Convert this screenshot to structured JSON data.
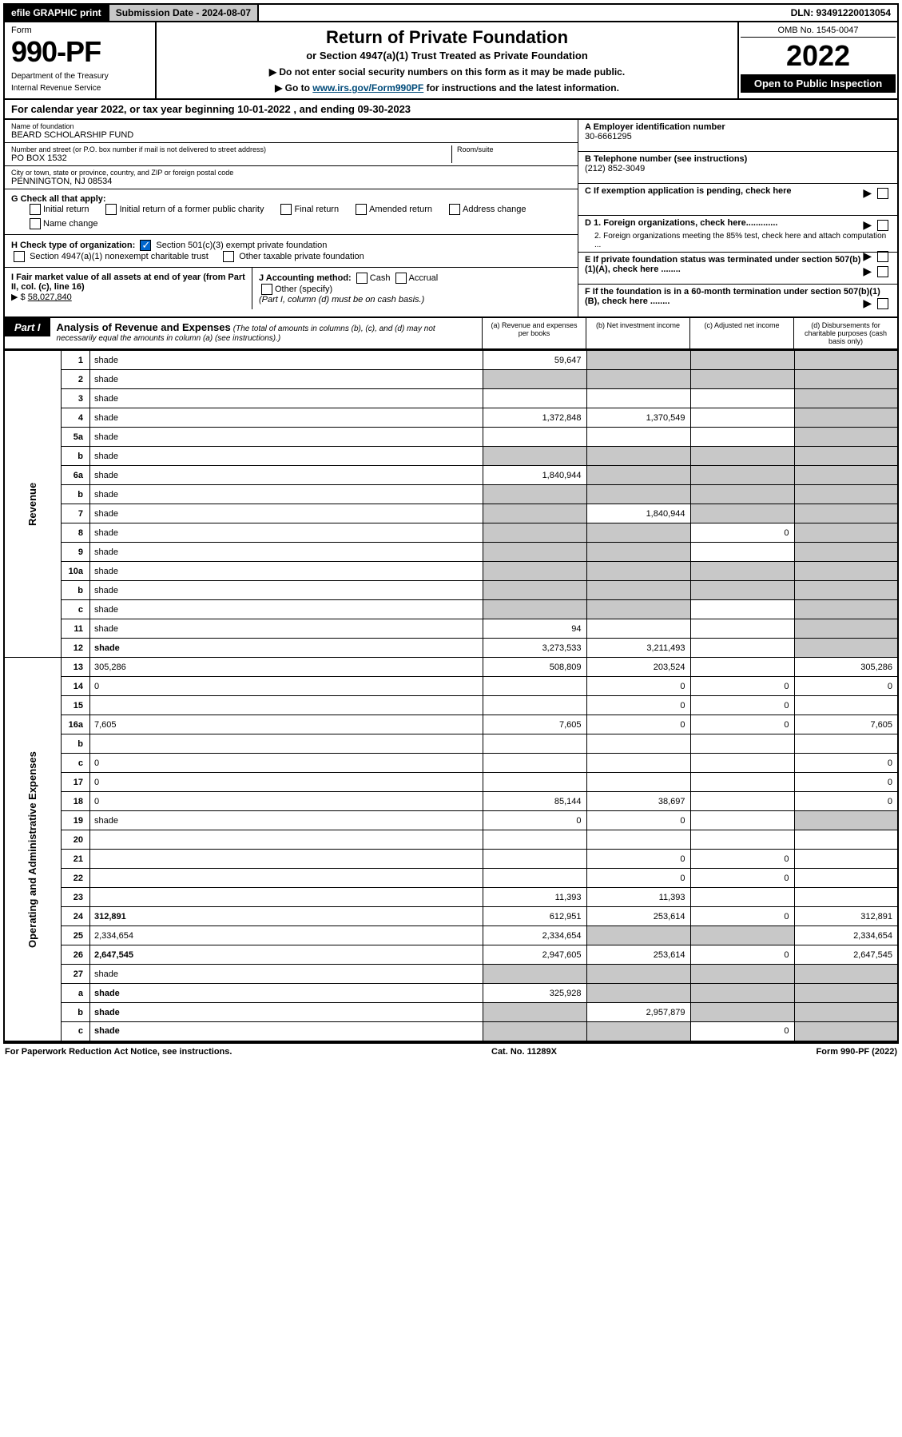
{
  "top_bar": {
    "efile": "efile GRAPHIC print",
    "submission_label": "Submission Date - 2024-08-07",
    "dln": "DLN: 93491220013054"
  },
  "header": {
    "form_word": "Form",
    "form_number": "990-PF",
    "dept": "Department of the Treasury",
    "irs": "Internal Revenue Service",
    "title": "Return of Private Foundation",
    "subtitle": "or Section 4947(a)(1) Trust Treated as Private Foundation",
    "instr1": "Do not enter social security numbers on this form as it may be made public.",
    "instr2_pre": "Go to ",
    "instr2_link": "www.irs.gov/Form990PF",
    "instr2_post": " for instructions and the latest information.",
    "omb": "OMB No. 1545-0047",
    "tax_year": "2022",
    "open_pub": "Open to Public Inspection"
  },
  "calendar": {
    "text_pre": "For calendar year 2022, or tax year beginning ",
    "begin": "10-01-2022",
    "mid": " , and ending ",
    "end": "09-30-2023"
  },
  "entity": {
    "name_label": "Name of foundation",
    "name": "BEARD SCHOLARSHIP FUND",
    "street_label": "Number and street (or P.O. box number if mail is not delivered to street address)",
    "street": "PO BOX 1532",
    "room_label": "Room/suite",
    "city_label": "City or town, state or province, country, and ZIP or foreign postal code",
    "city": "PENNINGTON, NJ  08534",
    "a_label": "A Employer identification number",
    "a_val": "30-6661295",
    "b_label": "B Telephone number (see instructions)",
    "b_val": "(212) 852-3049",
    "c_label": "C If exemption application is pending, check here",
    "d1": "D 1. Foreign organizations, check here.............",
    "d2": "2. Foreign organizations meeting the 85% test, check here and attach computation ...",
    "e_label": "E  If private foundation status was terminated under section 507(b)(1)(A), check here ........",
    "f_label": "F  If the foundation is in a 60-month termination under section 507(b)(1)(B), check here ........"
  },
  "g": {
    "label": "G Check all that apply:",
    "opts": [
      "Initial return",
      "Initial return of a former public charity",
      "Final return",
      "Amended return",
      "Address change",
      "Name change"
    ]
  },
  "h": {
    "label": "H Check type of organization:",
    "opt1": "Section 501(c)(3) exempt private foundation",
    "opt2": "Section 4947(a)(1) nonexempt charitable trust",
    "opt3": "Other taxable private foundation"
  },
  "i": {
    "label": "I Fair market value of all assets at end of year (from Part II, col. (c), line 16)",
    "arrow": "▶ $",
    "val": "58,027,840"
  },
  "j": {
    "label": "J Accounting method:",
    "cash": "Cash",
    "accrual": "Accrual",
    "other": "Other (specify)",
    "note": "(Part I, column (d) must be on cash basis.)"
  },
  "part1": {
    "badge": "Part I",
    "title": "Analysis of Revenue and Expenses",
    "note": "(The total of amounts in columns (b), (c), and (d) may not necessarily equal the amounts in column (a) (see instructions).)",
    "col_a": "(a)   Revenue and expenses per books",
    "col_b": "(b)   Net investment income",
    "col_c": "(c)   Adjusted net income",
    "col_d": "(d)  Disbursements for charitable purposes (cash basis only)"
  },
  "side_labels": {
    "revenue": "Revenue",
    "opex": "Operating and Administrative Expenses"
  },
  "rows": [
    {
      "n": "1",
      "d": "shade",
      "a": "59,647",
      "b": "shade",
      "c": "shade"
    },
    {
      "n": "2",
      "d": "shade",
      "a": "shade",
      "b": "shade",
      "c": "shade"
    },
    {
      "n": "3",
      "d": "shade",
      "a": "",
      "b": "",
      "c": ""
    },
    {
      "n": "4",
      "d": "shade",
      "a": "1,372,848",
      "b": "1,370,549",
      "c": ""
    },
    {
      "n": "5a",
      "d": "shade",
      "a": "",
      "b": "",
      "c": ""
    },
    {
      "n": "b",
      "d": "shade",
      "a": "shade",
      "b": "shade",
      "c": "shade"
    },
    {
      "n": "6a",
      "d": "shade",
      "a": "1,840,944",
      "b": "shade",
      "c": "shade"
    },
    {
      "n": "b",
      "d": "shade",
      "a": "shade",
      "b": "shade",
      "c": "shade"
    },
    {
      "n": "7",
      "d": "shade",
      "a": "shade",
      "b": "1,840,944",
      "c": "shade"
    },
    {
      "n": "8",
      "d": "shade",
      "a": "shade",
      "b": "shade",
      "c": "0"
    },
    {
      "n": "9",
      "d": "shade",
      "a": "shade",
      "b": "shade",
      "c": ""
    },
    {
      "n": "10a",
      "d": "shade",
      "a": "shade",
      "b": "shade",
      "c": "shade"
    },
    {
      "n": "b",
      "d": "shade",
      "a": "shade",
      "b": "shade",
      "c": "shade"
    },
    {
      "n": "c",
      "d": "shade",
      "a": "shade",
      "b": "shade",
      "c": ""
    },
    {
      "n": "11",
      "d": "shade",
      "a": "94",
      "b": "",
      "c": ""
    },
    {
      "n": "12",
      "d": "shade",
      "a": "3,273,533",
      "b": "3,211,493",
      "c": "",
      "bold": true
    },
    {
      "n": "13",
      "d": "305,286",
      "a": "508,809",
      "b": "203,524",
      "c": ""
    },
    {
      "n": "14",
      "d": "0",
      "a": "",
      "b": "0",
      "c": "0"
    },
    {
      "n": "15",
      "d": "",
      "a": "",
      "b": "0",
      "c": "0"
    },
    {
      "n": "16a",
      "d": "7,605",
      "a": "7,605",
      "b": "0",
      "c": "0"
    },
    {
      "n": "b",
      "d": "",
      "a": "",
      "b": "",
      "c": ""
    },
    {
      "n": "c",
      "d": "0",
      "a": "",
      "b": "",
      "c": ""
    },
    {
      "n": "17",
      "d": "0",
      "a": "",
      "b": "",
      "c": ""
    },
    {
      "n": "18",
      "d": "0",
      "a": "85,144",
      "b": "38,697",
      "c": ""
    },
    {
      "n": "19",
      "d": "shade",
      "a": "0",
      "b": "0",
      "c": ""
    },
    {
      "n": "20",
      "d": "",
      "a": "",
      "b": "",
      "c": ""
    },
    {
      "n": "21",
      "d": "",
      "a": "",
      "b": "0",
      "c": "0"
    },
    {
      "n": "22",
      "d": "",
      "a": "",
      "b": "0",
      "c": "0"
    },
    {
      "n": "23",
      "d": "",
      "a": "11,393",
      "b": "11,393",
      "c": ""
    },
    {
      "n": "24",
      "d": "312,891",
      "a": "612,951",
      "b": "253,614",
      "c": "0",
      "bold": true
    },
    {
      "n": "25",
      "d": "2,334,654",
      "a": "2,334,654",
      "b": "shade",
      "c": "shade"
    },
    {
      "n": "26",
      "d": "2,647,545",
      "a": "2,947,605",
      "b": "253,614",
      "c": "0",
      "bold": true
    },
    {
      "n": "27",
      "d": "shade",
      "a": "shade",
      "b": "shade",
      "c": "shade"
    },
    {
      "n": "a",
      "d": "shade",
      "a": "325,928",
      "b": "shade",
      "c": "shade",
      "bold": true
    },
    {
      "n": "b",
      "d": "shade",
      "a": "shade",
      "b": "2,957,879",
      "c": "shade",
      "bold": true
    },
    {
      "n": "c",
      "d": "shade",
      "a": "shade",
      "b": "shade",
      "c": "0",
      "bold": true
    }
  ],
  "footer": {
    "left": "For Paperwork Reduction Act Notice, see instructions.",
    "mid": "Cat. No. 11289X",
    "right": "Form 990-PF (2022)"
  }
}
